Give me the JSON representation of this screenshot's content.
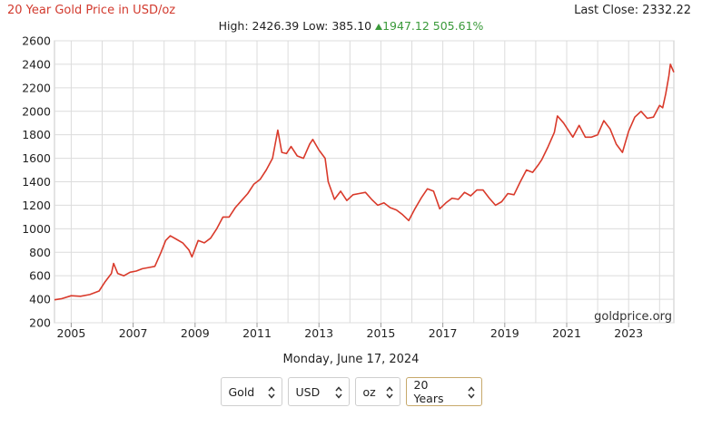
{
  "header": {
    "title": "20 Year Gold Price in USD/oz",
    "last_close_label": "Last Close:",
    "last_close_value": "2332.22",
    "high_label": "High:",
    "high_value": "2426.39",
    "low_label": "Low:",
    "low_value": "385.10",
    "change_value": "1947.12",
    "change_pct": "505.61%"
  },
  "date_text": "Monday, June 17, 2024",
  "watermark": "goldprice.org",
  "controls": {
    "metal": "Gold",
    "currency": "USD",
    "unit": "oz",
    "range": "20 Years"
  },
  "colors": {
    "line": "#d93a2b",
    "title": "#d23a2e",
    "up": "#3a9a3a",
    "grid": "#dcdcdc",
    "active_border": "#c7a96b"
  },
  "icons": {
    "change": "up-triangle-icon",
    "select": "updown-arrows-icon"
  },
  "chart_data": {
    "type": "line",
    "title": "20 Year Gold Price in USD/oz",
    "xlabel": "",
    "ylabel": "",
    "xlim": [
      2004.46,
      2024.46
    ],
    "ylim": [
      200,
      2600
    ],
    "x_ticks": [
      "2005",
      "2007",
      "2009",
      "2011",
      "2013",
      "2015",
      "2017",
      "2019",
      "2021",
      "2023"
    ],
    "y_ticks": [
      "200",
      "400",
      "600",
      "800",
      "1000",
      "1200",
      "1400",
      "1600",
      "1800",
      "2000",
      "2200",
      "2400",
      "2600"
    ],
    "grid": true,
    "legend": "none",
    "series": [
      {
        "x": [
          2004.46,
          2004.7,
          2005.0,
          2005.3,
          2005.6,
          2005.9,
          2006.1,
          2006.3,
          2006.37,
          2006.5,
          2006.7,
          2006.9,
          2007.1,
          2007.3,
          2007.5,
          2007.7,
          2007.9,
          2008.05,
          2008.2,
          2008.4,
          2008.6,
          2008.8,
          2008.9,
          2009.1,
          2009.3,
          2009.5,
          2009.7,
          2009.9,
          2010.1,
          2010.3,
          2010.5,
          2010.7,
          2010.9,
          2011.1,
          2011.3,
          2011.5,
          2011.67,
          2011.8,
          2011.95,
          2012.1,
          2012.3,
          2012.5,
          2012.7,
          2012.8,
          2013.0,
          2013.2,
          2013.3,
          2013.5,
          2013.7,
          2013.9,
          2014.1,
          2014.3,
          2014.5,
          2014.7,
          2014.9,
          2015.1,
          2015.3,
          2015.5,
          2015.7,
          2015.9,
          2016.1,
          2016.3,
          2016.5,
          2016.7,
          2016.9,
          2017.1,
          2017.3,
          2017.5,
          2017.7,
          2017.9,
          2018.1,
          2018.3,
          2018.5,
          2018.7,
          2018.9,
          2019.1,
          2019.3,
          2019.5,
          2019.7,
          2019.9,
          2020.1,
          2020.2,
          2020.4,
          2020.6,
          2020.7,
          2020.9,
          2021.0,
          2021.2,
          2021.4,
          2021.6,
          2021.8,
          2022.0,
          2022.2,
          2022.4,
          2022.6,
          2022.8,
          2023.0,
          2023.2,
          2023.4,
          2023.6,
          2023.8,
          2024.0,
          2024.1,
          2024.2,
          2024.3,
          2024.35,
          2024.46
        ],
        "y": [
          395,
          405,
          430,
          425,
          440,
          470,
          550,
          620,
          705,
          620,
          600,
          630,
          640,
          660,
          670,
          680,
          800,
          900,
          940,
          910,
          880,
          820,
          760,
          900,
          880,
          920,
          1000,
          1100,
          1100,
          1180,
          1240,
          1300,
          1380,
          1420,
          1500,
          1600,
          1840,
          1650,
          1640,
          1700,
          1620,
          1600,
          1720,
          1760,
          1670,
          1600,
          1400,
          1250,
          1320,
          1240,
          1290,
          1300,
          1310,
          1250,
          1200,
          1220,
          1180,
          1160,
          1120,
          1070,
          1170,
          1260,
          1340,
          1320,
          1170,
          1220,
          1260,
          1250,
          1310,
          1280,
          1330,
          1330,
          1260,
          1200,
          1230,
          1300,
          1290,
          1400,
          1500,
          1480,
          1550,
          1590,
          1700,
          1820,
          1960,
          1900,
          1860,
          1780,
          1880,
          1780,
          1780,
          1800,
          1920,
          1850,
          1720,
          1650,
          1830,
          1950,
          2000,
          1940,
          1950,
          2050,
          2030,
          2150,
          2300,
          2400,
          2332
        ]
      }
    ]
  }
}
